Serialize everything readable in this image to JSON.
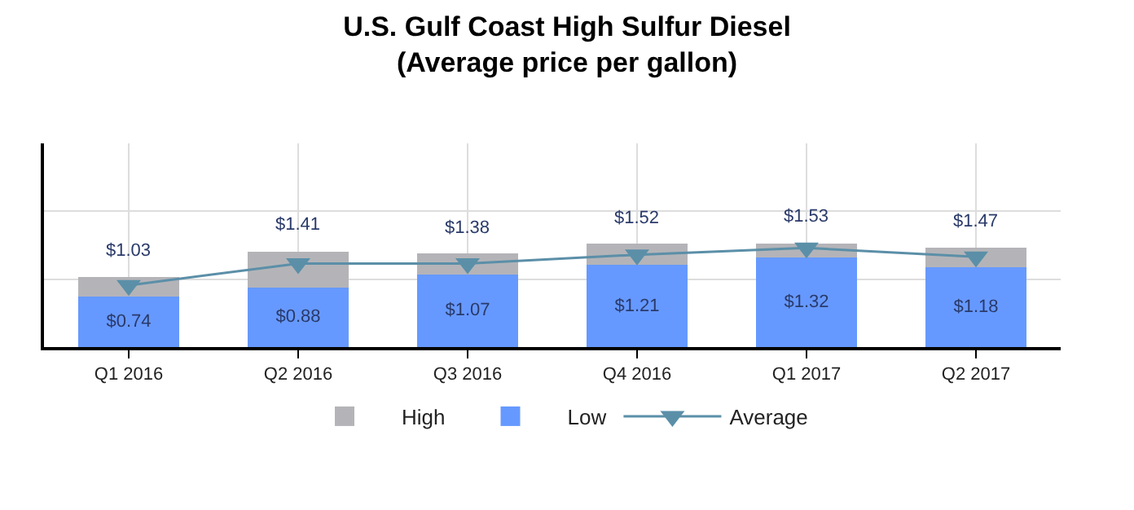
{
  "chart_data": {
    "type": "bar",
    "title": "U.S. Gulf Coast High Sulfur Diesel\n(Average price per gallon)",
    "categories": [
      "Q1 2016",
      "Q2 2016",
      "Q3 2016",
      "Q4 2016",
      "Q1 2017",
      "Q2 2017"
    ],
    "stacked": true,
    "series": [
      {
        "name": "Low",
        "color": "#6699ff",
        "values": [
          0.74,
          0.88,
          1.07,
          1.21,
          1.32,
          1.18
        ],
        "value_labels": [
          "$0.74",
          "$0.88",
          "$1.07",
          "$1.21",
          "$1.32",
          "$1.18"
        ]
      },
      {
        "name": "High",
        "color": "#b4b4b8",
        "values": [
          0.29,
          0.53,
          0.31,
          0.31,
          0.21,
          0.29
        ]
      },
      {
        "name": "Average",
        "type": "line",
        "color": "#5b8fa8",
        "marker": "triangle",
        "values": [
          0.91,
          1.23,
          1.23,
          1.36,
          1.46,
          1.33
        ]
      }
    ],
    "totals": [
      "$1.03",
      "$1.41",
      "$1.38",
      "$1.52",
      "$1.53",
      "$1.47"
    ],
    "ylim": [
      0,
      3
    ],
    "yticks": [
      {
        "value": 0,
        "label": null
      },
      {
        "value": 1,
        "label": null
      },
      {
        "value": 2,
        "label": null
      }
    ],
    "tick_labels": "x",
    "grid": true,
    "legend": "bottom"
  }
}
